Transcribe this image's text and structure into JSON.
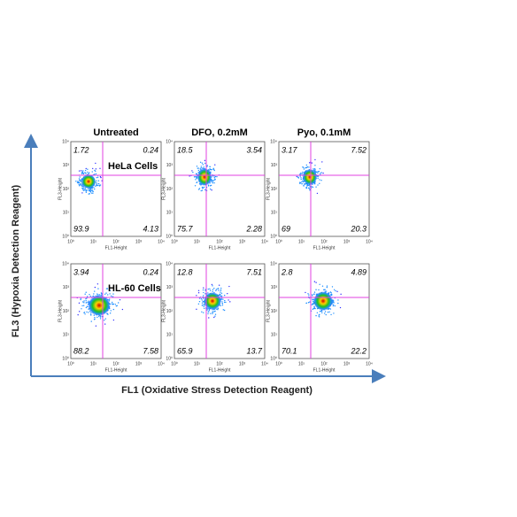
{
  "columns": [
    "Untreated",
    "DFO, 0.2mM",
    "Pyo, 0.1mM"
  ],
  "rows": [
    {
      "label": "HeLa Cells",
      "panels": [
        {
          "ul": 1.72,
          "ur": 0.24,
          "ll": 93.9,
          "lr": 4.13
        },
        {
          "ul": 18.5,
          "ur": 3.54,
          "ll": 75.7,
          "lr": 2.28
        },
        {
          "ul": 3.17,
          "ur": 7.52,
          "ll": 69,
          "lr": 20.3
        }
      ]
    },
    {
      "label": "HL-60 Cells",
      "panels": [
        {
          "ul": 3.94,
          "ur": 0.24,
          "ll": 88.2,
          "lr": 7.58
        },
        {
          "ul": 12.8,
          "ur": 7.51,
          "ll": 65.9,
          "lr": 13.7
        },
        {
          "ul": 2.8,
          "ur": 4.89,
          "ll": 70.1,
          "lr": 22.2
        }
      ]
    }
  ],
  "plot_axes": {
    "x_label": "FL1-Height",
    "y_label": "FL3-Height",
    "ticks": [
      "10⁰",
      "10¹",
      "10²",
      "10³",
      "10⁴"
    ]
  },
  "x_axis_label": "FL1 (Oxidative Stress Detection Reagent)",
  "y_axis_label": "FL3 (Hypoxia Detection Reagent)"
}
